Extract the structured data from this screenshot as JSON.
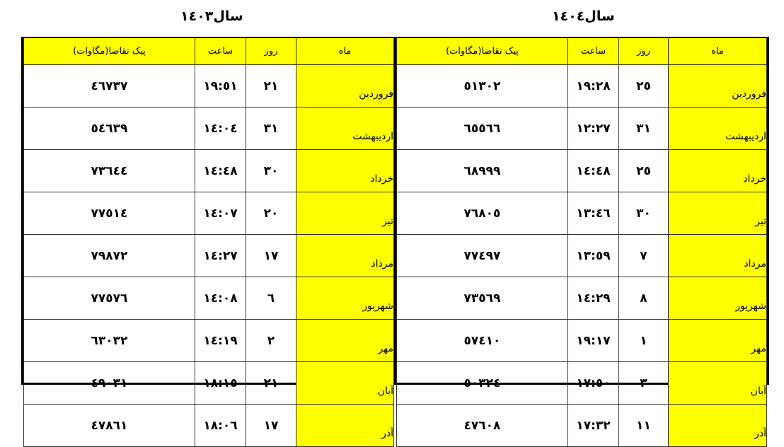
{
  "headers": {
    "month": "ماه",
    "day": "روز",
    "time": "ساعت",
    "peak": "پیک تقاضا(مگاوات)"
  },
  "colors": {
    "header_bg": "#ffff00",
    "month_bg": "#ffff00",
    "border": "#000000"
  },
  "tables": {
    "y1403": {
      "title": "سال١٤٠٣",
      "rows": [
        {
          "month": "فروردین",
          "day": "٢١",
          "time": "١٩:٥١",
          "peak": "٤٦٧٣٧"
        },
        {
          "month": "اردیبهشت",
          "day": "٣١",
          "time": "١٤:٠٤",
          "peak": "٥٤٦٣٩"
        },
        {
          "month": "خرداد",
          "day": "٣٠",
          "time": "١٤:٤٨",
          "peak": "٧٣٦٤٤"
        },
        {
          "month": "تیر",
          "day": "٢٠",
          "time": "١٤:٠٧",
          "peak": "٧٧٥١٤"
        },
        {
          "month": "مرداد",
          "day": "١٧",
          "time": "١٤:٢٧",
          "peak": "٧٩٨٧٢"
        },
        {
          "month": "شهریور",
          "day": "٦",
          "time": "١٤:٠٨",
          "peak": "٧٧٥٧٦"
        },
        {
          "month": "مهر",
          "day": "٢",
          "time": "١٤:١٩",
          "peak": "٦٣٠٣٢"
        },
        {
          "month": "آبان",
          "day": "٢١",
          "time": "١٨:١٥",
          "peak": "٤٩٠٣١"
        },
        {
          "month": "آذر",
          "day": "١٧",
          "time": "١٨:٠٦",
          "peak": "٤٧٨٦١"
        }
      ]
    },
    "y1404": {
      "title": "سال١٤٠٤",
      "rows": [
        {
          "month": "فروردین",
          "day": "٢٥",
          "time": "١٩:٢٨",
          "peak": "٥١٣٠٢"
        },
        {
          "month": "اردیبهشت",
          "day": "٣١",
          "time": "١٢:٢٧",
          "peak": "٦٥٥٦٦"
        },
        {
          "month": "خرداد",
          "day": "٢٥",
          "time": "١٤:٤٨",
          "peak": "٦٨٩٩٩"
        },
        {
          "month": "تیر",
          "day": "٣٠",
          "time": "١٣:٤٦",
          "peak": "٧٦٨٠٥"
        },
        {
          "month": "مرداد",
          "day": "٧",
          "time": "١٣:٥٩",
          "peak": "٧٧٤٩٧"
        },
        {
          "month": "شهریور",
          "day": "٨",
          "time": "١٤:٢٩",
          "peak": "٧٣٥٦٩"
        },
        {
          "month": "مهر",
          "day": "١",
          "time": "١٩:١٧",
          "peak": "٥٧٤١٠"
        },
        {
          "month": "آبان",
          "day": "٣",
          "time": "١٧:٥٠",
          "peak": "٥٠٣٢٤"
        },
        {
          "month": "آذر",
          "day": "١١",
          "time": "١٧:٣٢",
          "peak": "٤٧٦٠٨"
        }
      ]
    }
  }
}
